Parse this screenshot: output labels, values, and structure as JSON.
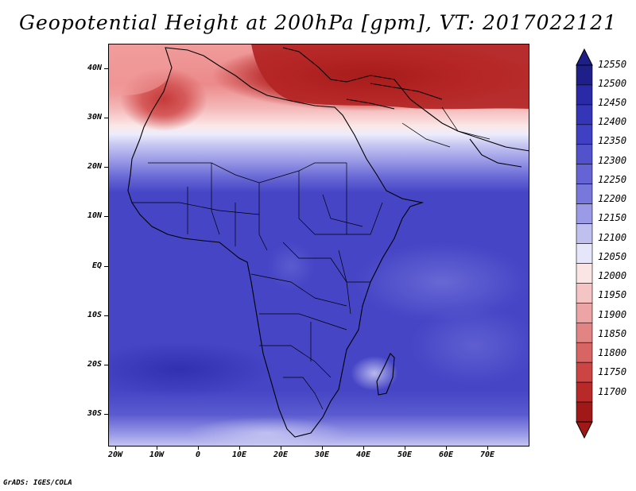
{
  "title": "Geopotential Height at 200hPa [gpm], VT: 2017022121",
  "credit": "GrADS: IGES/COLA",
  "map": {
    "lat_labels": [
      "40N",
      "30N",
      "20N",
      "10N",
      "EQ",
      "10S",
      "20S",
      "30S"
    ],
    "lon_labels": [
      "20W",
      "10W",
      "0",
      "10E",
      "20E",
      "30E",
      "40E",
      "50E",
      "60E",
      "70E"
    ]
  },
  "colorbar": {
    "levels": [
      "12550",
      "12500",
      "12450",
      "12400",
      "12350",
      "12300",
      "12250",
      "12200",
      "12150",
      "12100",
      "12050",
      "12000",
      "11950",
      "11900",
      "11850",
      "11800",
      "11750",
      "11700"
    ],
    "colors": [
      "#1f1f8a",
      "#2a2aa8",
      "#3535b8",
      "#4040c4",
      "#5252cc",
      "#6464d4",
      "#7878dc",
      "#9a9ae6",
      "#c0c0f0",
      "#e6e6fa",
      "#fbe4e4",
      "#f5c4c4",
      "#eca4a4",
      "#e28484",
      "#d86464",
      "#cc4444",
      "#b82a2a",
      "#a01818"
    ]
  }
}
